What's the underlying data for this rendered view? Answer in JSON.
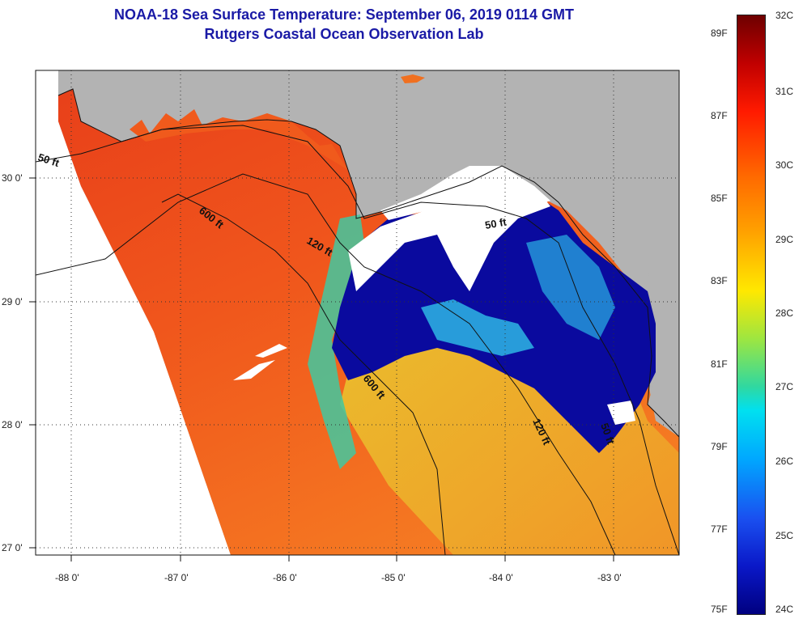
{
  "title_line1": "NOAA-18 Sea Surface Temperature:  September 06, 2019 0114 GMT",
  "title_line2": "Rutgers Coastal Ocean Observation Lab",
  "lon_ticks": [
    "-88 0'",
    "-87 0'",
    "-86 0'",
    "-85 0'",
    "-84 0'",
    "-83 0'"
  ],
  "lat_ticks": [
    "30 0'",
    "29 0'",
    "28 0'",
    "27 0'"
  ],
  "contour_labels": [
    "50 ft",
    "600 ft",
    "120 ft",
    "50 ft",
    "600 ft",
    "120 ft",
    "50 ft"
  ],
  "colorbar": {
    "celsius": [
      "32C",
      "31C",
      "30C",
      "29C",
      "28C",
      "27C",
      "26C",
      "25C",
      "24C"
    ],
    "fahrenheit": [
      "89F",
      "87F",
      "85F",
      "83F",
      "81F",
      "79F",
      "77F",
      "75F"
    ]
  },
  "colors": {
    "title": "#1a1aa6",
    "land": "#b3b3b3",
    "no_data": "#ffffff",
    "warm_sst": "#f0501a",
    "cold_upwelling": "#0a0a9e"
  }
}
